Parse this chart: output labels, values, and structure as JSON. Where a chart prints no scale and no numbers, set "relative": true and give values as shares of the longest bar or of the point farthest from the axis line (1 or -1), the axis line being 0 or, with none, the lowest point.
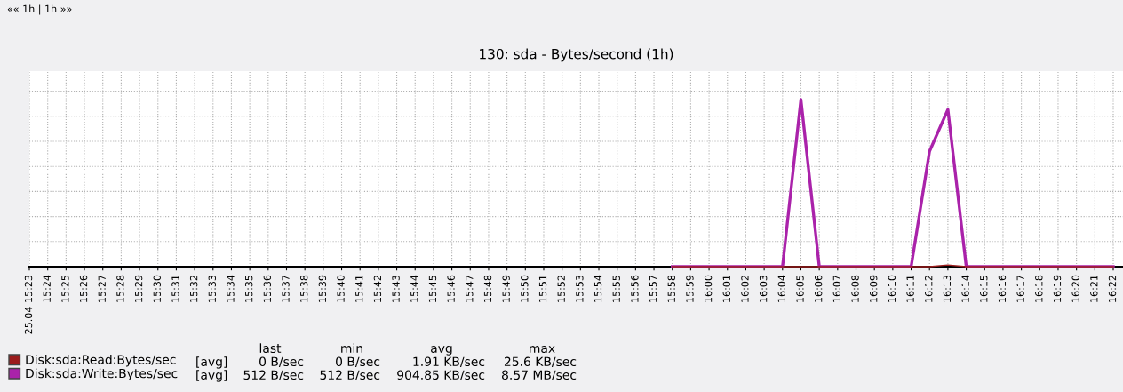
{
  "chart_data": {
    "type": "line",
    "title": "130: sda - Bytes/second (1h)",
    "relative": true,
    "grid": true,
    "legend": "bottom left",
    "marker": "none",
    "line_style": "solid",
    "categories": [
      "25.04 15:23",
      "15:24",
      "15:25",
      "15:26",
      "15:27",
      "15:28",
      "15:29",
      "15:30",
      "15:31",
      "15:32",
      "15:33",
      "15:34",
      "15:35",
      "15:36",
      "15:37",
      "15:38",
      "15:39",
      "15:40",
      "15:41",
      "15:42",
      "15:43",
      "15:44",
      "15:45",
      "15:46",
      "15:47",
      "15:48",
      "15:49",
      "15:50",
      "15:51",
      "15:52",
      "15:53",
      "15:54",
      "15:55",
      "15:56",
      "15:57",
      "15:58",
      "15:59",
      "16:00",
      "16:01",
      "16:02",
      "16:03",
      "16:04",
      "16:05",
      "16:06",
      "16:07",
      "16:08",
      "16:09",
      "16:10",
      "16:11",
      "16:12",
      "16:13",
      "16:14",
      "16:15",
      "16:16",
      "16:17",
      "16:18",
      "16:19",
      "16:20",
      "16:21",
      "16:22"
    ],
    "series": [
      {
        "name": "Disk:sda:Read:Bytes/sec",
        "color": "#9b1c1c",
        "values": [
          null,
          null,
          null,
          null,
          null,
          null,
          null,
          null,
          null,
          null,
          null,
          null,
          null,
          null,
          null,
          null,
          null,
          null,
          null,
          null,
          null,
          null,
          null,
          null,
          null,
          null,
          null,
          null,
          null,
          null,
          null,
          null,
          null,
          null,
          null,
          0,
          0,
          0,
          0,
          0,
          0,
          0,
          0,
          0,
          0,
          0,
          0,
          0,
          0,
          0,
          0.01,
          0,
          0,
          0,
          0,
          0,
          0,
          0,
          0,
          0
        ]
      },
      {
        "name": "Disk:sda:Write:Bytes/sec",
        "color": "#aa22aa",
        "values": [
          null,
          null,
          null,
          null,
          null,
          null,
          null,
          null,
          null,
          null,
          null,
          null,
          null,
          null,
          null,
          null,
          null,
          null,
          null,
          null,
          null,
          null,
          null,
          null,
          null,
          null,
          null,
          null,
          null,
          null,
          null,
          null,
          null,
          null,
          null,
          0,
          0,
          0,
          0,
          0,
          0,
          0,
          1,
          0,
          0,
          0,
          0,
          0,
          0,
          0.69,
          0.94,
          0,
          0,
          0,
          0,
          0,
          0,
          0,
          0,
          0
        ]
      }
    ],
    "annotations": [
      "«« 1h | 1h »»",
      "last",
      "min",
      "avg",
      "max",
      "[avg]",
      "0 B/sec",
      "0 B/sec",
      "1.91 KB/sec",
      "25.6 KB/sec",
      "[avg]",
      "512 B/sec",
      "512 B/sec",
      "904.85 KB/sec",
      "8.57 MB/sec"
    ]
  }
}
